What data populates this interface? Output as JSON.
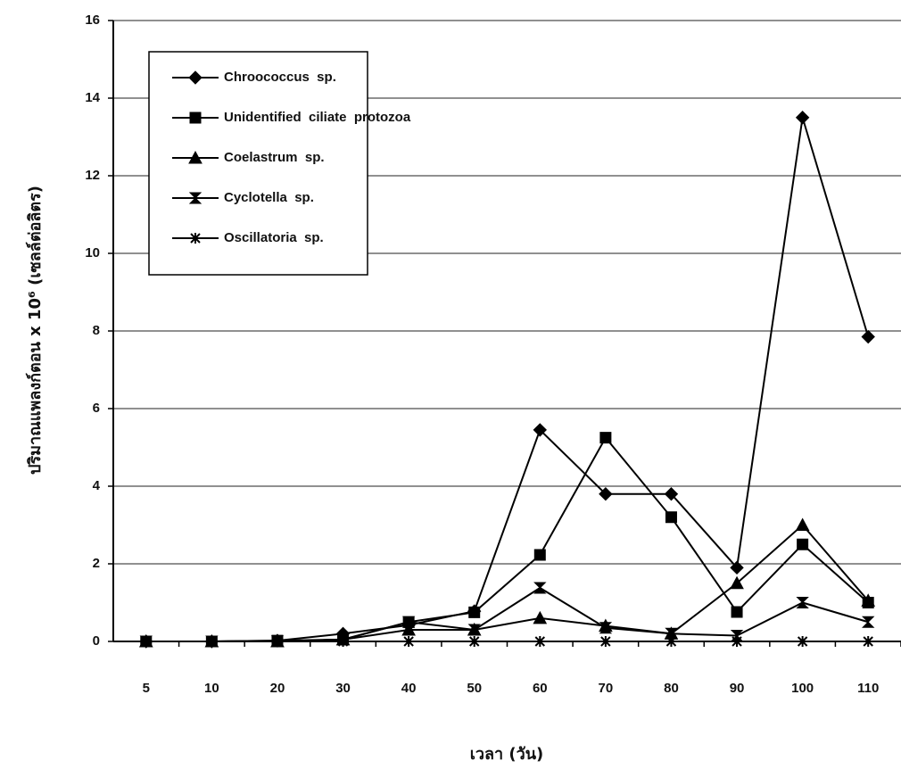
{
  "chart_data": {
    "type": "line",
    "x_label": "เวลา (วัน)",
    "y_label": "ปริมาณแพลงก์ตอน x 10⁶ (เซลล์ต่อลิตร)",
    "categories": [
      "5",
      "10",
      "20",
      "30",
      "40",
      "50",
      "60",
      "70",
      "80",
      "90",
      "100",
      "110"
    ],
    "series": [
      {
        "name": "Chroococcus  sp.",
        "color": "#000000",
        "marker": "diamond",
        "values": [
          0,
          0,
          0.02,
          0.2,
          0.42,
          0.78,
          5.45,
          3.8,
          3.8,
          1.9,
          13.5,
          7.85
        ]
      },
      {
        "name": "Unidentified  ciliate  protozoa",
        "color": "#000000",
        "marker": "square",
        "values": [
          0,
          0,
          0.02,
          0.05,
          0.5,
          0.75,
          2.23,
          5.25,
          3.2,
          0.76,
          2.5,
          1.0
        ]
      },
      {
        "name": "Coelastrum  sp.",
        "color": "#000000",
        "marker": "triangle",
        "values": [
          0,
          0,
          0,
          0.05,
          0.3,
          0.3,
          0.6,
          0.4,
          0.2,
          1.5,
          3.0,
          1.05
        ]
      },
      {
        "name": "Cyclotella  sp.",
        "color": "#000000",
        "marker": "bowtie",
        "values": [
          0,
          0,
          0,
          0.05,
          0.5,
          0.3,
          1.38,
          0.35,
          0.2,
          0.15,
          1.0,
          0.5
        ]
      },
      {
        "name": "Oscillatoria  sp.",
        "color": "#000000",
        "marker": "asterisk",
        "values": [
          0,
          0,
          0,
          0,
          0,
          0,
          0,
          0,
          0,
          0,
          0,
          0
        ]
      }
    ],
    "ylim": [
      0,
      16
    ],
    "yticks": [
      0,
      2,
      4,
      6,
      8,
      10,
      12,
      14,
      16
    ],
    "grid": true,
    "legend": "top-left"
  }
}
